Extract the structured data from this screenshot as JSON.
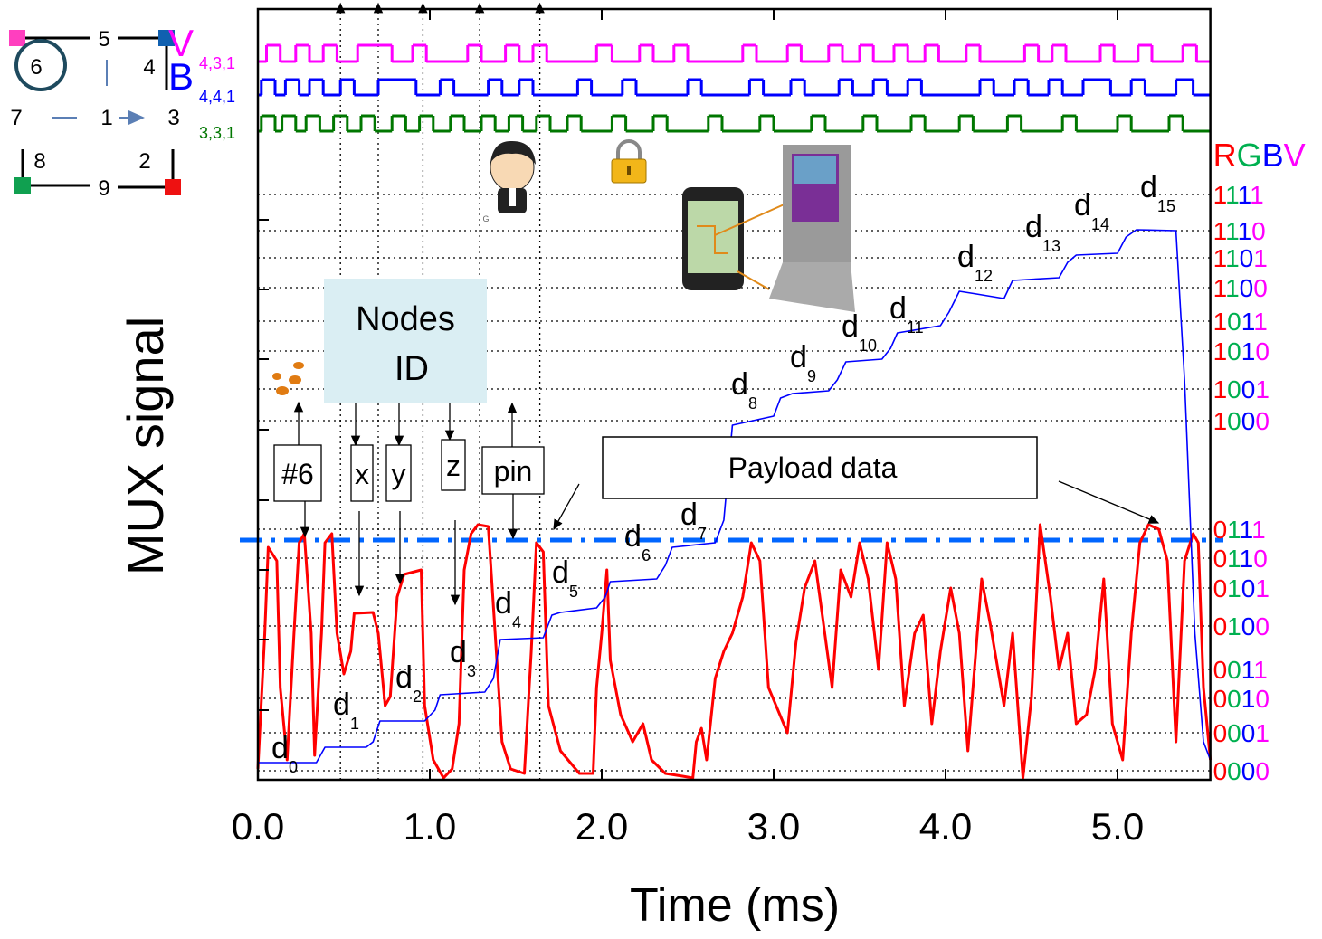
{
  "chart_data": {
    "type": "line",
    "x_label": "Time (ms)",
    "y_label": "MUX signal",
    "xlim": [
      0,
      5.54
    ],
    "xticks": [
      {
        "value": 0,
        "label": "0.0"
      },
      {
        "value": 1,
        "label": "1.0"
      },
      {
        "value": 2,
        "label": "2.0"
      },
      {
        "value": 3,
        "label": "3.0"
      },
      {
        "value": 4,
        "label": "4.0"
      },
      {
        "value": 5,
        "label": "5.0"
      }
    ],
    "ylim": [
      0,
      852
    ],
    "yticks": [
      77,
      155,
      232,
      309,
      387,
      465,
      542,
      619
    ],
    "series": [
      {
        "color": "#ff0000",
        "x": [
          0,
          0.04,
          0.06,
          0.11,
          0.13,
          0.17,
          0.21,
          0.24,
          0.27,
          0.31,
          0.33,
          0.37,
          0.39,
          0.43,
          0.46,
          0.5,
          0.54,
          0.56,
          0.67,
          0.7,
          0.74,
          0.77,
          0.81,
          0.85,
          0.95,
          0.97,
          1.02,
          1.08,
          1.13,
          1.17,
          1.2,
          1.24,
          1.28,
          1.34,
          1.38,
          1.42,
          1.47,
          1.55,
          1.59,
          1.62,
          1.66,
          1.69,
          1.76,
          1.87,
          1.95,
          1.97,
          2.0,
          2.03,
          2.05,
          2.11,
          2.18,
          2.24,
          2.29,
          2.37,
          2.47,
          2.53,
          2.55,
          2.58,
          2.61,
          2.66,
          2.71,
          2.76,
          2.82,
          2.87,
          2.92,
          2.97,
          3.08,
          3.13,
          3.18,
          3.24,
          3.29,
          3.34,
          3.39,
          3.45,
          3.5,
          3.55,
          3.61,
          3.66,
          3.71,
          3.76,
          3.82,
          3.87,
          3.92,
          3.97,
          4.03,
          4.08,
          4.13,
          4.21,
          4.26,
          4.34,
          4.39,
          4.45,
          4.5,
          4.55,
          4.61,
          4.66,
          4.71,
          4.76,
          4.82,
          4.87,
          4.92,
          4.97,
          5.03,
          5.08,
          5.13,
          5.18,
          5.24,
          5.29,
          5.34,
          5.37,
          5.39,
          5.44,
          5.47,
          5.5,
          5.54
        ],
        "values": [
          12,
          162,
          257,
          242,
          102,
          22,
          162,
          262,
          272,
          162,
          27,
          162,
          262,
          272,
          162,
          117,
          142,
          184,
          185,
          162,
          82,
          92,
          202,
          227,
          232,
          82,
          22,
          2,
          12,
          62,
          232,
          272,
          282,
          280,
          162,
          42,
          12,
          7,
          142,
          262,
          252,
          82,
          32,
          7,
          7,
          102,
          162,
          232,
          132,
          72,
          42,
          62,
          22,
          7,
          4,
          2,
          42,
          57,
          22,
          112,
          142,
          162,
          202,
          262,
          242,
          102,
          52,
          152,
          212,
          242,
          172,
          102,
          232,
          202,
          262,
          222,
          122,
          262,
          222,
          82,
          162,
          182,
          62,
          142,
          212,
          162,
          32,
          222,
          172,
          82,
          162,
          2,
          92,
          282,
          202,
          122,
          162,
          62,
          72,
          122,
          222,
          62,
          22,
          162,
          262,
          282,
          277,
          242,
          42,
          162,
          242,
          272,
          262,
          102,
          22
        ]
      },
      {
        "color": "#0000ff",
        "x": [
          0,
          0.34,
          0.39,
          0.63,
          0.67,
          0.71,
          0.97,
          1.03,
          1.06,
          1.32,
          1.37,
          1.41,
          1.66,
          1.71,
          1.76,
          1.97,
          2.02,
          2.05,
          2.32,
          2.37,
          2.41,
          2.66,
          2.71,
          2.76,
          3.0,
          3.04,
          3.11,
          3.32,
          3.37,
          3.42,
          3.63,
          3.68,
          3.72,
          3.97,
          4.02,
          4.08,
          4.18,
          4.34,
          4.39,
          4.66,
          4.71,
          4.76,
          5.0,
          5.05,
          5.11,
          5.34,
          5.39,
          5.45,
          5.5,
          5.54
        ],
        "values": [
          19,
          19,
          36,
          36,
          42,
          65,
          65,
          77,
          94,
          97,
          112,
          155,
          157,
          182,
          185,
          190,
          202,
          219,
          222,
          237,
          257,
          262,
          287,
          392,
          402,
          422,
          427,
          430,
          442,
          462,
          465,
          477,
          494,
          502,
          517,
          540,
          537,
          532,
          552,
          555,
          572,
          580,
          582,
          600,
          608,
          607,
          442,
          162,
          42,
          22
        ]
      }
    ],
    "threshold": {
      "value": 265,
      "color": "#0066ff"
    },
    "vlines": [
      0.48,
      0.7,
      0.96,
      1.29,
      1.64
    ],
    "traces": [
      {
        "type": "step",
        "name": "V",
        "subscript": "4,3,1",
        "color": "#ff00ff",
        "x": [
          0,
          0.05,
          0.13,
          0.22,
          0.3,
          0.38,
          0.46,
          0.58,
          0.78,
          0.9,
          0.98,
          1.22,
          1.3,
          1.44,
          1.52,
          1.6,
          1.68,
          1.97,
          2.06,
          2.22,
          2.3,
          2.42,
          2.5,
          2.82,
          2.9,
          3.08,
          3.16,
          3.32,
          3.4,
          3.5,
          3.58,
          3.7,
          3.78,
          3.88,
          3.96,
          4.12,
          4.2,
          4.46,
          4.54,
          4.62,
          4.7,
          4.9,
          4.98,
          5.12,
          5.2,
          5.38,
          5.46
        ],
        "values": [
          794,
          812,
          794,
          812,
          794,
          812,
          794,
          812,
          794,
          812,
          794,
          812,
          794,
          812,
          794,
          812,
          794,
          812,
          794,
          812,
          794,
          812,
          794,
          812,
          794,
          812,
          794,
          812,
          794,
          812,
          794,
          812,
          794,
          812,
          794,
          812,
          794,
          812,
          794,
          812,
          794,
          812,
          794,
          812,
          794,
          812,
          794
        ]
      },
      {
        "type": "step",
        "name": "B",
        "subscript": "4,4,1",
        "color": "#0000ff",
        "x": [
          0,
          0.02,
          0.1,
          0.16,
          0.24,
          0.3,
          0.38,
          0.48,
          0.56,
          0.7,
          0.92,
          1.06,
          1.14,
          1.34,
          1.42,
          1.52,
          1.6,
          1.86,
          1.94,
          2.12,
          2.2,
          2.5,
          2.58,
          2.86,
          2.94,
          3.1,
          3.18,
          3.38,
          3.46,
          3.58,
          3.66,
          3.78,
          3.86,
          4.2,
          4.28,
          4.4,
          4.48,
          4.6,
          4.68,
          4.8,
          4.96,
          5.08,
          5.16,
          5.34,
          5.44
        ],
        "values": [
          757,
          774,
          757,
          774,
          757,
          774,
          757,
          774,
          757,
          774,
          757,
          774,
          757,
          774,
          757,
          774,
          757,
          774,
          757,
          774,
          757,
          774,
          757,
          774,
          757,
          774,
          757,
          774,
          757,
          774,
          757,
          774,
          757,
          774,
          757,
          774,
          757,
          774,
          757,
          774,
          757,
          774,
          757,
          774,
          757
        ]
      },
      {
        "type": "step",
        "subscript": "3,3,1",
        "color": "#007700",
        "x": [
          0,
          0.02,
          0.1,
          0.14,
          0.22,
          0.28,
          0.36,
          0.44,
          0.52,
          0.6,
          0.68,
          0.78,
          0.86,
          0.94,
          1.02,
          1.12,
          1.2,
          1.3,
          1.38,
          1.46,
          1.54,
          1.62,
          1.7,
          1.8,
          1.88,
          2.06,
          2.14,
          2.3,
          2.38,
          2.62,
          2.7,
          2.92,
          3.0,
          3.22,
          3.3,
          3.52,
          3.6,
          3.8,
          3.88,
          4.08,
          4.16,
          4.36,
          4.44,
          4.68,
          4.76,
          5.0,
          5.08,
          5.3,
          5.38
        ],
        "values": [
          717,
          734,
          717,
          734,
          717,
          734,
          717,
          734,
          717,
          734,
          717,
          734,
          717,
          734,
          717,
          734,
          717,
          734,
          717,
          734,
          717,
          734,
          717,
          734,
          717,
          734,
          717,
          734,
          717,
          734,
          717,
          734,
          717,
          734,
          717,
          734,
          717,
          734,
          717,
          734,
          717,
          734,
          717,
          734,
          717,
          734,
          717,
          734,
          717
        ]
      }
    ],
    "level_header": "RGBV",
    "digit_colors": [
      "#ff0000",
      "#00b050",
      "#0000ff",
      "#ff00ff"
    ],
    "levels": [
      {
        "label": "0000",
        "value": 10
      },
      {
        "label": "0001",
        "value": 52
      },
      {
        "label": "0010",
        "value": 90
      },
      {
        "label": "0011",
        "value": 122
      },
      {
        "label": "0100",
        "value": 170
      },
      {
        "label": "0101",
        "value": 212
      },
      {
        "label": "0110",
        "value": 245
      },
      {
        "label": "0111",
        "value": 277
      },
      {
        "label": "1000",
        "value": 397
      },
      {
        "label": "1001",
        "value": 432
      },
      {
        "label": "1010",
        "value": 474
      },
      {
        "label": "1011",
        "value": 507
      },
      {
        "label": "1100",
        "value": 544
      },
      {
        "label": "1101",
        "value": 577
      },
      {
        "label": "1110",
        "value": 607
      },
      {
        "label": "1111",
        "value": 647
      }
    ],
    "annotations": [
      {
        "text": "d",
        "sub": "0"
      },
      {
        "text": "d",
        "sub": "1"
      },
      {
        "text": "d",
        "sub": "2"
      },
      {
        "text": "d",
        "sub": "3"
      },
      {
        "text": "d",
        "sub": "4"
      },
      {
        "text": "d",
        "sub": "5"
      },
      {
        "text": "d",
        "sub": "6"
      },
      {
        "text": "d",
        "sub": "7"
      },
      {
        "text": "d",
        "sub": "8"
      },
      {
        "text": "d",
        "sub": "9"
      },
      {
        "text": "d",
        "sub": "10"
      },
      {
        "text": "d",
        "sub": "11"
      },
      {
        "text": "d",
        "sub": "12"
      },
      {
        "text": "d",
        "sub": "13"
      },
      {
        "text": "d",
        "sub": "14"
      },
      {
        "text": "d",
        "sub": "15"
      }
    ],
    "callouts": [
      "#6",
      "x",
      "y",
      "z",
      "pin"
    ],
    "nodes_id": [
      "Nodes",
      "ID"
    ],
    "payload": "Payload data",
    "small_mark": "G"
  },
  "node_diagram": [
    "5",
    "6",
    "4",
    "7",
    "1",
    "3",
    "8",
    "2",
    "9"
  ]
}
